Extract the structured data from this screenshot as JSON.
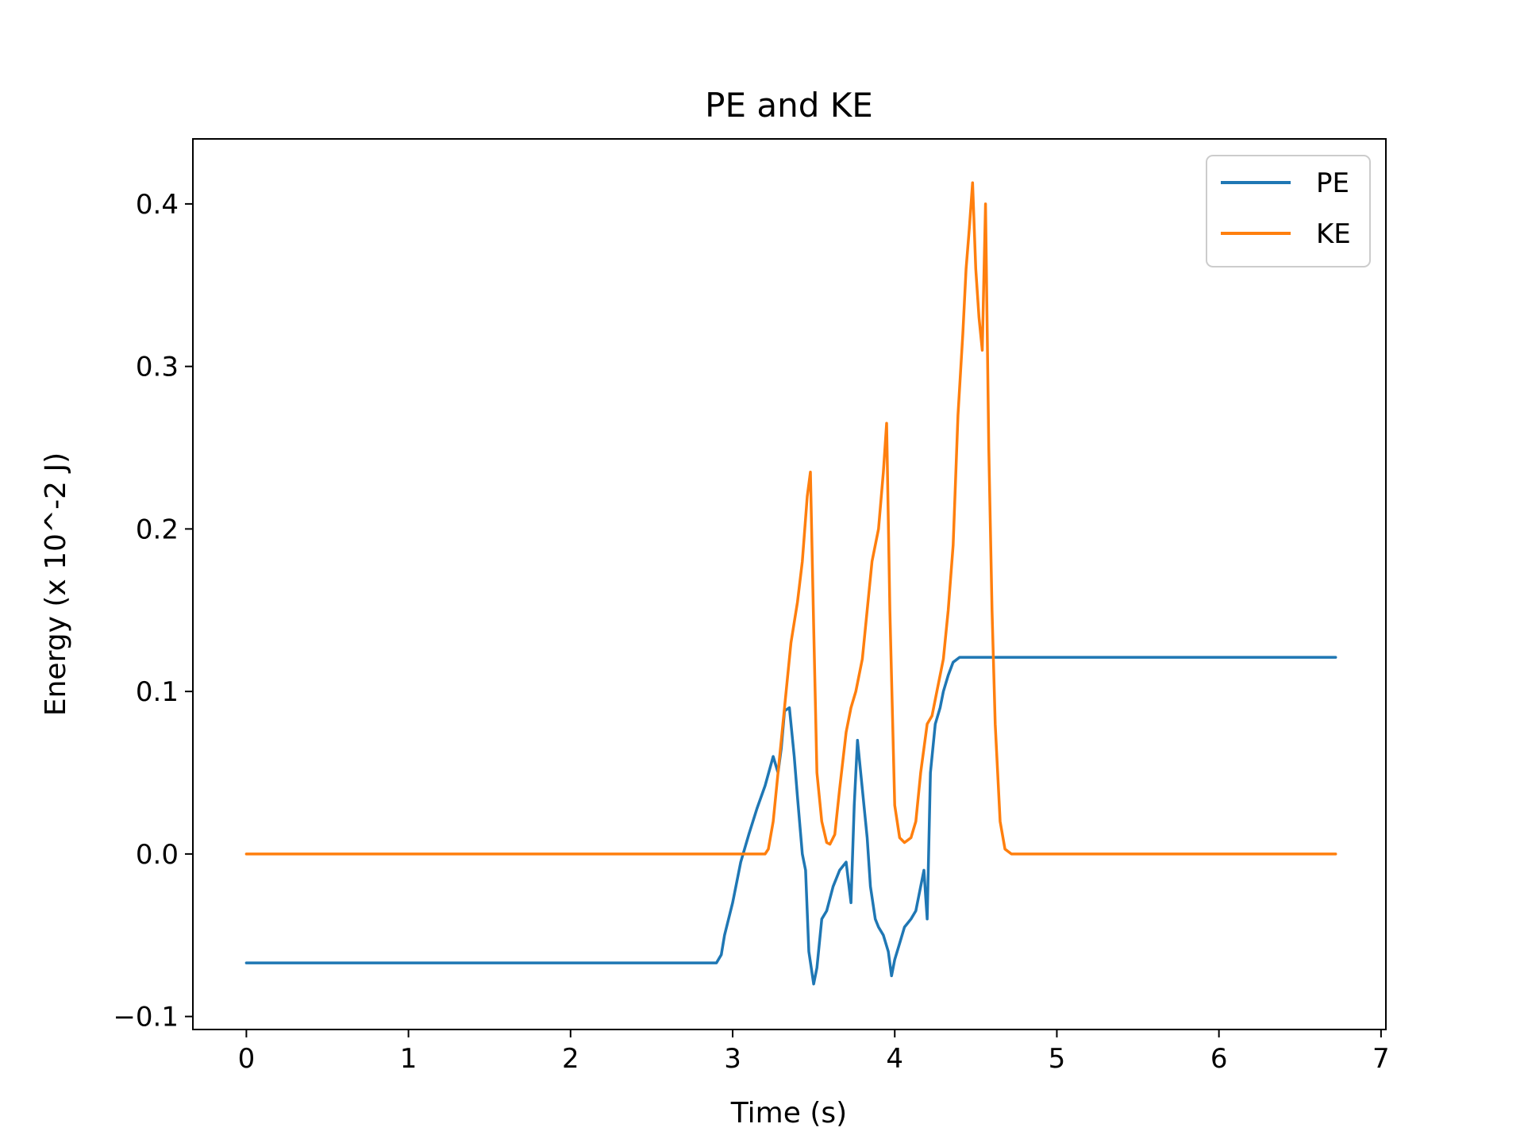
{
  "chart_data": {
    "type": "line",
    "title": "PE and KE",
    "xlabel": "Time (s)",
    "ylabel": "Energy (x 10^-2 J)",
    "xlim": [
      -0.33,
      7.03
    ],
    "ylim": [
      -0.108,
      0.44
    ],
    "x_ticks": [
      0,
      1,
      2,
      3,
      4,
      5,
      6,
      7
    ],
    "x_tick_labels": [
      "0",
      "1",
      "2",
      "3",
      "4",
      "5",
      "6",
      "7"
    ],
    "y_ticks": [
      -0.1,
      0.0,
      0.1,
      0.2,
      0.3,
      0.4
    ],
    "y_tick_labels": [
      "−0.1",
      "0.0",
      "0.1",
      "0.2",
      "0.3",
      "0.4"
    ],
    "grid": false,
    "legend_position": "top-right",
    "series": [
      {
        "name": "PE",
        "color": "#1f77b4",
        "x": [
          0,
          2.9,
          2.93,
          2.95,
          3.0,
          3.05,
          3.1,
          3.15,
          3.2,
          3.25,
          3.28,
          3.3,
          3.32,
          3.35,
          3.38,
          3.4,
          3.43,
          3.45,
          3.47,
          3.5,
          3.52,
          3.55,
          3.58,
          3.62,
          3.66,
          3.7,
          3.73,
          3.75,
          3.77,
          3.8,
          3.83,
          3.85,
          3.88,
          3.9,
          3.93,
          3.96,
          3.98,
          4.0,
          4.03,
          4.06,
          4.1,
          4.13,
          4.16,
          4.18,
          4.2,
          4.22,
          4.25,
          4.28,
          4.3,
          4.33,
          4.36,
          4.4,
          5.0,
          6.0,
          6.72
        ],
        "y": [
          -0.067,
          -0.067,
          -0.062,
          -0.05,
          -0.03,
          -0.005,
          0.012,
          0.028,
          0.042,
          0.06,
          0.05,
          0.065,
          0.088,
          0.09,
          0.06,
          0.035,
          0.0,
          -0.01,
          -0.06,
          -0.08,
          -0.07,
          -0.04,
          -0.035,
          -0.02,
          -0.01,
          -0.005,
          -0.03,
          0.03,
          0.07,
          0.04,
          0.01,
          -0.02,
          -0.04,
          -0.045,
          -0.05,
          -0.06,
          -0.075,
          -0.065,
          -0.055,
          -0.045,
          -0.04,
          -0.035,
          -0.02,
          -0.01,
          -0.04,
          0.05,
          0.08,
          0.09,
          0.1,
          0.11,
          0.118,
          0.121,
          0.121,
          0.121,
          0.121
        ]
      },
      {
        "name": "KE",
        "color": "#ff7f0e",
        "x": [
          0,
          3.2,
          3.22,
          3.25,
          3.28,
          3.3,
          3.33,
          3.36,
          3.4,
          3.43,
          3.46,
          3.48,
          3.5,
          3.52,
          3.55,
          3.58,
          3.6,
          3.63,
          3.66,
          3.7,
          3.73,
          3.76,
          3.8,
          3.83,
          3.86,
          3.9,
          3.93,
          3.95,
          3.97,
          4.0,
          4.03,
          4.06,
          4.1,
          4.13,
          4.16,
          4.2,
          4.23,
          4.26,
          4.3,
          4.33,
          4.36,
          4.39,
          4.42,
          4.44,
          4.46,
          4.48,
          4.5,
          4.52,
          4.54,
          4.56,
          4.58,
          4.6,
          4.62,
          4.65,
          4.68,
          4.72,
          4.8,
          5.0,
          6.0,
          6.72
        ],
        "y": [
          0.0,
          0.0,
          0.003,
          0.02,
          0.05,
          0.07,
          0.1,
          0.13,
          0.155,
          0.18,
          0.22,
          0.235,
          0.14,
          0.05,
          0.02,
          0.007,
          0.006,
          0.012,
          0.04,
          0.075,
          0.09,
          0.1,
          0.12,
          0.15,
          0.18,
          0.2,
          0.235,
          0.265,
          0.15,
          0.03,
          0.01,
          0.007,
          0.01,
          0.02,
          0.05,
          0.08,
          0.085,
          0.1,
          0.12,
          0.15,
          0.19,
          0.27,
          0.32,
          0.36,
          0.385,
          0.413,
          0.36,
          0.33,
          0.31,
          0.4,
          0.25,
          0.15,
          0.08,
          0.02,
          0.003,
          0.0,
          0.0,
          0.0,
          0.0,
          0.0
        ]
      }
    ]
  }
}
